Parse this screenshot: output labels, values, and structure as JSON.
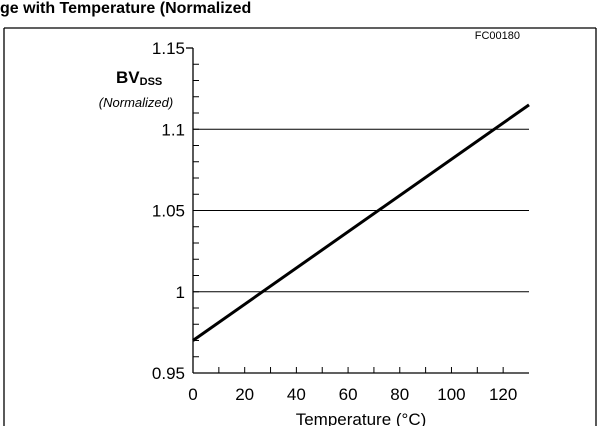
{
  "header_fragment": "ge with Temperature (Normalized",
  "figure_code": "FC00180",
  "colors": {
    "line": "#000000",
    "grid": "#000000",
    "background": "#ffffff"
  },
  "chart_data": {
    "type": "line",
    "ylabel_main": "BV",
    "ylabel_sub": "DSS",
    "ylabel_note": "(Normalized)",
    "xlabel": "Temperature (°C)",
    "x_ticks": [
      "0",
      "20",
      "40",
      "60",
      "80",
      "100",
      "120"
    ],
    "y_ticks": [
      "0.95",
      "1",
      "1.05",
      "1.1",
      "1.15"
    ],
    "xlim": [
      0,
      130
    ],
    "ylim": [
      0.95,
      1.15
    ],
    "grid": "horizontal",
    "series": [
      {
        "x": [
          0,
          130
        ],
        "y": [
          0.97,
          1.115
        ]
      }
    ]
  }
}
